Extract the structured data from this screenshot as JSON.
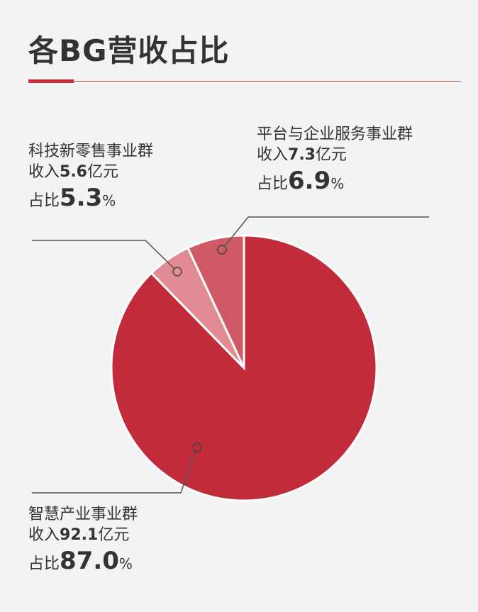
{
  "page_title": "各BG营收占比",
  "colors": {
    "accent": "#c9323f",
    "slice_main": "#c22b3a",
    "slice_platform": "#cf5a65",
    "slice_tech": "#e38b94",
    "leader": "#555555"
  },
  "chart_data": {
    "type": "pie",
    "title": "各BG营收占比",
    "unit": "亿元",
    "slices": [
      {
        "name": "平台与企业服务事业群",
        "revenue": 7.3,
        "share": 6.9
      },
      {
        "name": "科技新零售事业群",
        "revenue": 5.6,
        "share": 5.3
      },
      {
        "name": "智慧产业事业群",
        "revenue": 92.1,
        "share": 87.0
      }
    ]
  },
  "labels": {
    "revenue_prefix": "收入",
    "revenue_suffix": "亿元",
    "share_prefix": "占比",
    "share_suffix": "%"
  }
}
